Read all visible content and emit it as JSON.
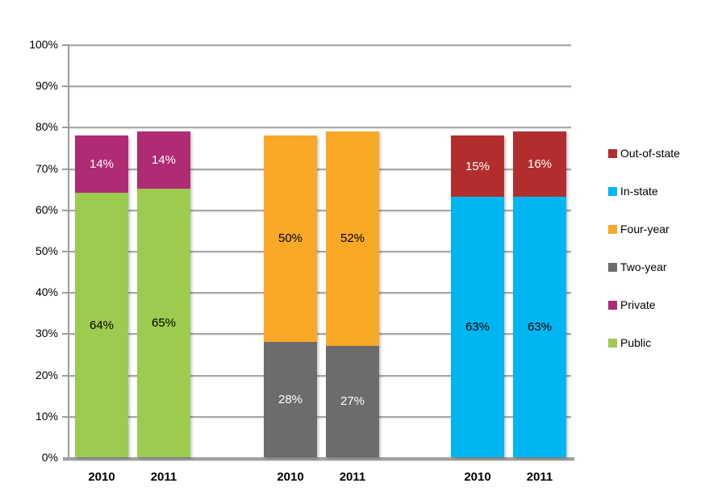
{
  "chart_data": {
    "type": "bar",
    "stacked": true,
    "title": "",
    "xlabel": "",
    "ylabel": "",
    "ylim": [
      0,
      100
    ],
    "ytick_step": 10,
    "ytick_labels": [
      "0%",
      "10%",
      "20%",
      "30%",
      "40%",
      "50%",
      "60%",
      "70%",
      "80%",
      "90%",
      "100%"
    ],
    "grid": true,
    "background_color": "#FFFFFF",
    "gridline_color": "#A8A8A8",
    "axis_color": "#9D9D9D",
    "legend_position": "right",
    "groups": [
      {
        "categories": [
          "2010",
          "2011"
        ],
        "series": [
          {
            "name": "Public",
            "color": "#9DCB50",
            "values": [
              64,
              65
            ],
            "labels": [
              "64%",
              "65%"
            ],
            "label_color": "#000000"
          },
          {
            "name": "Private",
            "color": "#AF2B73",
            "values": [
              14,
              14
            ],
            "labels": [
              "14%",
              "14%"
            ],
            "label_color": "#FFFFFF"
          }
        ]
      },
      {
        "categories": [
          "2010",
          "2011"
        ],
        "series": [
          {
            "name": "Two-year",
            "color": "#6C6C6C",
            "values": [
              28,
              27
            ],
            "labels": [
              "28%",
              "27%"
            ],
            "label_color": "#FFFFFF"
          },
          {
            "name": "Four-year",
            "color": "#F9A828",
            "values": [
              50,
              52
            ],
            "labels": [
              "50%",
              "52%"
            ],
            "label_color": "#000000"
          }
        ]
      },
      {
        "categories": [
          "2010",
          "2011"
        ],
        "series": [
          {
            "name": "In-state",
            "color": "#00B6F1",
            "values": [
              63,
              63
            ],
            "labels": [
              "63%",
              "63%"
            ],
            "label_color": "#000000"
          },
          {
            "name": "Out-of-state",
            "color": "#B22E2E",
            "values": [
              15,
              16
            ],
            "labels": [
              "15%",
              "16%"
            ],
            "label_color": "#FFFFFF"
          }
        ]
      }
    ],
    "legend": {
      "items": [
        {
          "label": "Out-of-state",
          "color": "#B22E2E"
        },
        {
          "label": "In-state",
          "color": "#00B6F1"
        },
        {
          "label": "Four-year",
          "color": "#F9A828"
        },
        {
          "label": "Two-year",
          "color": "#6C6C6C"
        },
        {
          "label": "Private",
          "color": "#AF2B73"
        },
        {
          "label": "Public",
          "color": "#9DCB50"
        }
      ]
    }
  }
}
